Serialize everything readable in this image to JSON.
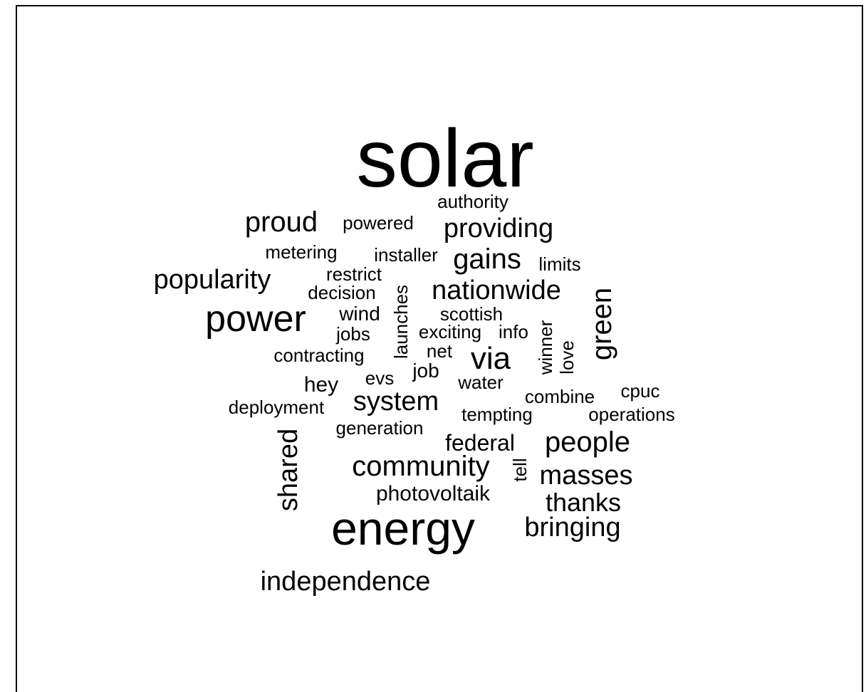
{
  "words": [
    "solar",
    "authority",
    "proud",
    "powered",
    "providing",
    "metering",
    "installer",
    "gains",
    "limits",
    "popularity",
    "restrict",
    "decision",
    "nationwide",
    "green",
    "launches",
    "power",
    "wind",
    "scottish",
    "jobs",
    "exciting",
    "info",
    "winner",
    "love",
    "contracting",
    "net",
    "via",
    "job",
    "evs",
    "water",
    "hey",
    "combine",
    "cpuc",
    "deployment",
    "system",
    "tempting",
    "operations",
    "generation",
    "shared",
    "federal",
    "people",
    "community",
    "tell",
    "masses",
    "photovoltaik",
    "thanks",
    "energy",
    "bringing",
    "independence"
  ]
}
